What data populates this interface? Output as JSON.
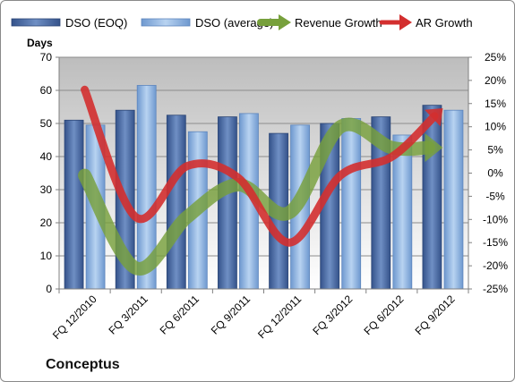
{
  "chart_data": {
    "type": "bar",
    "company": "Conceptus",
    "unit_label": "Days",
    "categories": [
      "FQ 12/2010",
      "FQ 3/2011",
      "FQ 6/2011",
      "FQ 9/2011",
      "FQ 12/2011",
      "FQ 3/2012",
      "FQ 6/2012",
      "FQ 9/2012"
    ],
    "left_axis": {
      "ylim": [
        0,
        70
      ],
      "ticks": [
        0,
        10,
        20,
        30,
        40,
        50,
        60,
        70
      ]
    },
    "right_axis": {
      "ylim": [
        -25,
        25
      ],
      "ticks": [
        "-25%",
        "-20%",
        "-15%",
        "-10%",
        "-5%",
        "0%",
        "5%",
        "10%",
        "15%",
        "20%",
        "25%"
      ]
    },
    "grid": true,
    "legend_position": "top",
    "series": [
      {
        "name": "DSO (EOQ)",
        "kind": "bar",
        "axis": "left",
        "color": "#4f6fa3",
        "values": [
          51,
          54,
          52.5,
          52,
          47,
          50,
          52,
          55.5
        ]
      },
      {
        "name": "DSO (average)",
        "kind": "bar",
        "axis": "left",
        "color": "#8fb4e3",
        "values": [
          49.5,
          61.5,
          47.5,
          53,
          49.5,
          51.5,
          46.5,
          54
        ]
      },
      {
        "name": "Revenue Growth",
        "kind": "line",
        "axis": "right",
        "color": "#77a03c",
        "values": [
          -0.5,
          -20.5,
          -9.5,
          -2.5,
          -8.5,
          10,
          5.5,
          5.5
        ]
      },
      {
        "name": "AR Growth",
        "kind": "line",
        "axis": "right",
        "color": "#d32f2f",
        "values": [
          18,
          -9.5,
          1.5,
          -1,
          -15,
          -0.5,
          3.5,
          14
        ]
      }
    ]
  }
}
